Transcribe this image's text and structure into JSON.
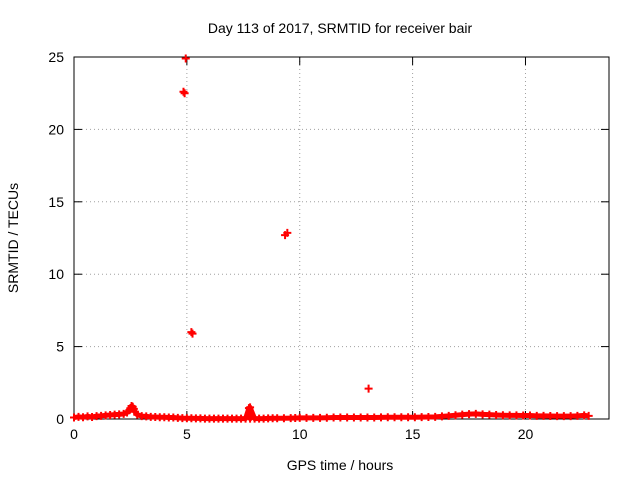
{
  "chart_data": {
    "type": "scatter",
    "title": "Day 113 of 2017, SRMTID for receiver bair",
    "xlabel": "GPS time / hours",
    "ylabel": "SRMTID / TECUs",
    "xlim": [
      0,
      23.7
    ],
    "ylim": [
      0,
      25
    ],
    "xticks": [
      0,
      5,
      10,
      15,
      20
    ],
    "yticks": [
      0,
      5,
      10,
      15,
      20,
      25
    ],
    "grid": true,
    "marker": "plus",
    "color": "#ff0000",
    "series": [
      {
        "name": "SRMTID",
        "points": [
          [
            0.0,
            0.1
          ],
          [
            0.2,
            0.15
          ],
          [
            0.4,
            0.12
          ],
          [
            0.6,
            0.18
          ],
          [
            0.8,
            0.14
          ],
          [
            1.0,
            0.2
          ],
          [
            1.2,
            0.22
          ],
          [
            1.4,
            0.25
          ],
          [
            1.6,
            0.28
          ],
          [
            1.8,
            0.3
          ],
          [
            2.0,
            0.32
          ],
          [
            2.2,
            0.35
          ],
          [
            2.35,
            0.45
          ],
          [
            2.45,
            0.6
          ],
          [
            2.5,
            0.75
          ],
          [
            2.55,
            0.9
          ],
          [
            2.6,
            0.85
          ],
          [
            2.65,
            0.7
          ],
          [
            2.7,
            0.5
          ],
          [
            2.8,
            0.3
          ],
          [
            3.0,
            0.2
          ],
          [
            3.2,
            0.18
          ],
          [
            3.4,
            0.15
          ],
          [
            3.6,
            0.14
          ],
          [
            3.8,
            0.12
          ],
          [
            4.0,
            0.12
          ],
          [
            4.2,
            0.1
          ],
          [
            4.4,
            0.1
          ],
          [
            4.6,
            0.08
          ],
          [
            4.8,
            0.06
          ],
          [
            5.0,
            0.05
          ],
          [
            5.2,
            0.05
          ],
          [
            5.4,
            0.04
          ],
          [
            5.6,
            0.04
          ],
          [
            5.8,
            0.03
          ],
          [
            6.0,
            0.03
          ],
          [
            6.2,
            0.03
          ],
          [
            6.4,
            0.03
          ],
          [
            6.6,
            0.03
          ],
          [
            6.8,
            0.03
          ],
          [
            7.0,
            0.03
          ],
          [
            7.2,
            0.03
          ],
          [
            7.4,
            0.03
          ],
          [
            7.6,
            0.03
          ],
          [
            7.8,
            0.03
          ],
          [
            8.0,
            0.03
          ],
          [
            8.2,
            0.03
          ],
          [
            8.4,
            0.03
          ],
          [
            8.6,
            0.04
          ],
          [
            8.8,
            0.05
          ],
          [
            9.0,
            0.05
          ],
          [
            9.3,
            0.05
          ],
          [
            9.6,
            0.06
          ],
          [
            9.8,
            0.07
          ],
          [
            10.0,
            0.08
          ],
          [
            10.3,
            0.08
          ],
          [
            10.6,
            0.08
          ],
          [
            10.9,
            0.08
          ],
          [
            11.2,
            0.09
          ],
          [
            11.5,
            0.1
          ],
          [
            11.8,
            0.1
          ],
          [
            12.1,
            0.1
          ],
          [
            12.4,
            0.1
          ],
          [
            12.7,
            0.1
          ],
          [
            13.0,
            0.1
          ],
          [
            13.3,
            0.1
          ],
          [
            13.6,
            0.11
          ],
          [
            13.9,
            0.12
          ],
          [
            14.2,
            0.12
          ],
          [
            14.5,
            0.12
          ],
          [
            14.8,
            0.12
          ],
          [
            15.1,
            0.12
          ],
          [
            15.4,
            0.13
          ],
          [
            15.7,
            0.14
          ],
          [
            16.0,
            0.15
          ],
          [
            16.3,
            0.18
          ],
          [
            16.6,
            0.22
          ],
          [
            16.9,
            0.26
          ],
          [
            17.2,
            0.3
          ],
          [
            17.5,
            0.34
          ],
          [
            17.8,
            0.35
          ],
          [
            18.1,
            0.32
          ],
          [
            18.4,
            0.3
          ],
          [
            18.7,
            0.28
          ],
          [
            19.0,
            0.26
          ],
          [
            19.3,
            0.25
          ],
          [
            19.6,
            0.25
          ],
          [
            19.9,
            0.24
          ],
          [
            20.2,
            0.24
          ],
          [
            20.5,
            0.22
          ],
          [
            20.8,
            0.22
          ],
          [
            21.1,
            0.21
          ],
          [
            21.4,
            0.2
          ],
          [
            21.7,
            0.2
          ],
          [
            22.0,
            0.2
          ],
          [
            22.3,
            0.22
          ],
          [
            22.6,
            0.25
          ],
          [
            22.8,
            0.22
          ],
          [
            4.95,
            24.9
          ],
          [
            4.85,
            22.6
          ],
          [
            4.9,
            22.5
          ],
          [
            5.2,
            6.0
          ],
          [
            5.25,
            5.9
          ],
          [
            9.35,
            12.7
          ],
          [
            9.45,
            12.85
          ],
          [
            7.75,
            0.75
          ],
          [
            7.8,
            0.8
          ],
          [
            13.05,
            2.1
          ]
        ]
      }
    ]
  }
}
